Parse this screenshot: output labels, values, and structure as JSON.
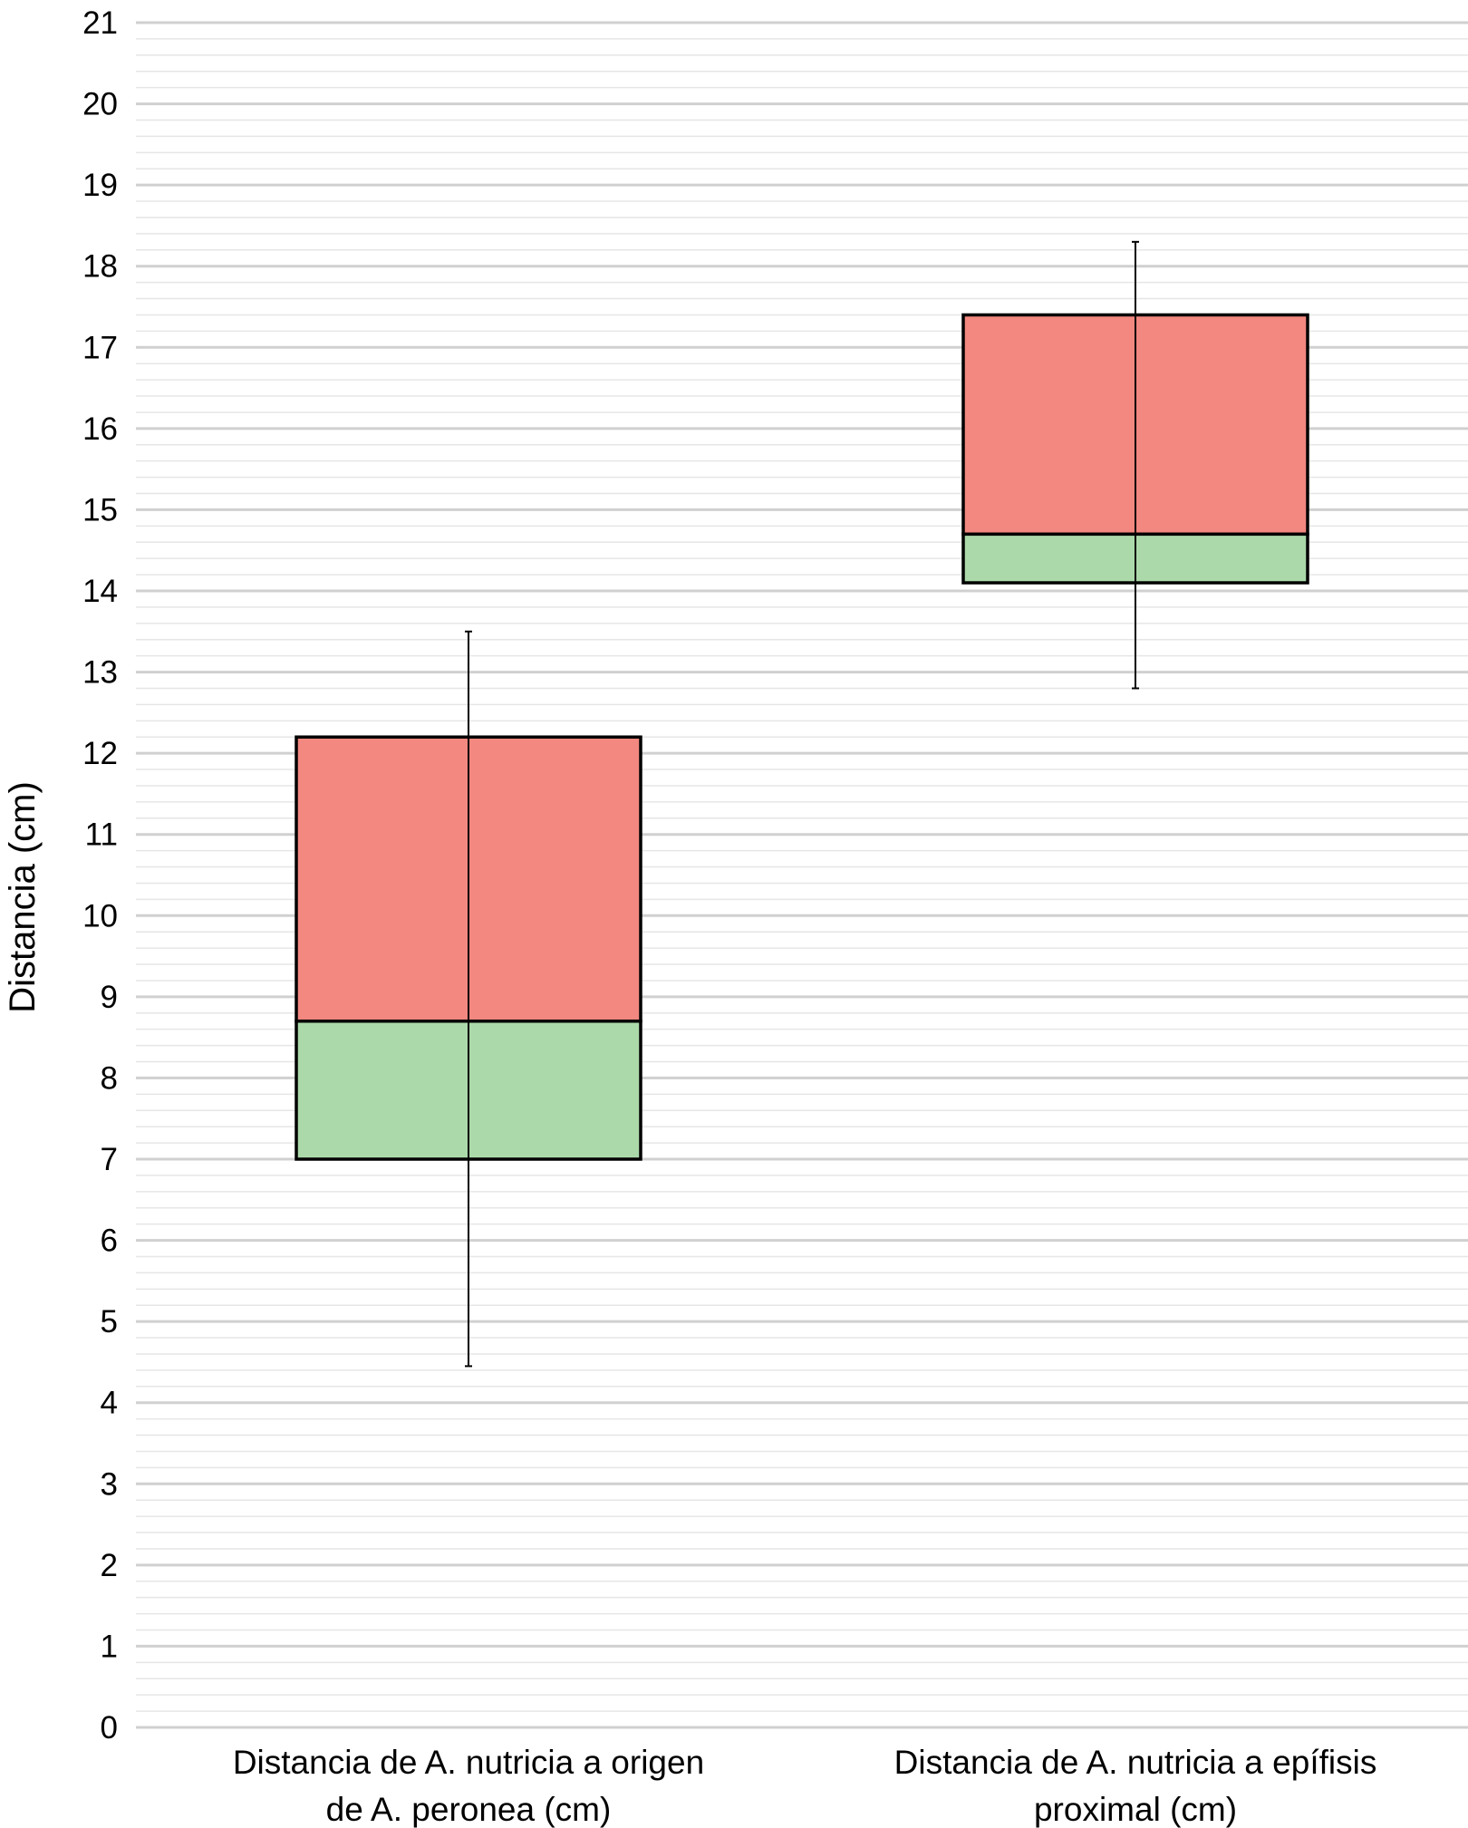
{
  "chart_data": {
    "type": "box",
    "title": "",
    "xlabel": "",
    "ylabel": "Distancia (cm)",
    "ylim": [
      0,
      21
    ],
    "y_ticks": [
      "0",
      "1",
      "2",
      "3",
      "4",
      "5",
      "6",
      "7",
      "8",
      "9",
      "10",
      "11",
      "12",
      "13",
      "14",
      "15",
      "16",
      "17",
      "18",
      "19",
      "20",
      "21"
    ],
    "minor_gridlines_per_unit": 5,
    "grid": true,
    "categories": [
      {
        "lines": [
          "Distancia de A. nutricia a origen",
          "de A. peronea (cm)"
        ]
      },
      {
        "lines": [
          "Distancia de A. nutricia a epífisis",
          "proximal (cm)"
        ]
      }
    ],
    "boxes": [
      {
        "min": 4.45,
        "q1": 7.0,
        "median": 8.7,
        "q3": 12.2,
        "max": 13.5
      },
      {
        "min": 12.8,
        "q1": 14.1,
        "median": 14.7,
        "q3": 17.4,
        "max": 18.3
      }
    ],
    "colors": {
      "upper_box": "#f28880",
      "lower_box": "#abd9aa",
      "box_outline": "#000000",
      "major_grid": "#d0d0d0",
      "minor_grid": "#e6e6e6"
    }
  }
}
